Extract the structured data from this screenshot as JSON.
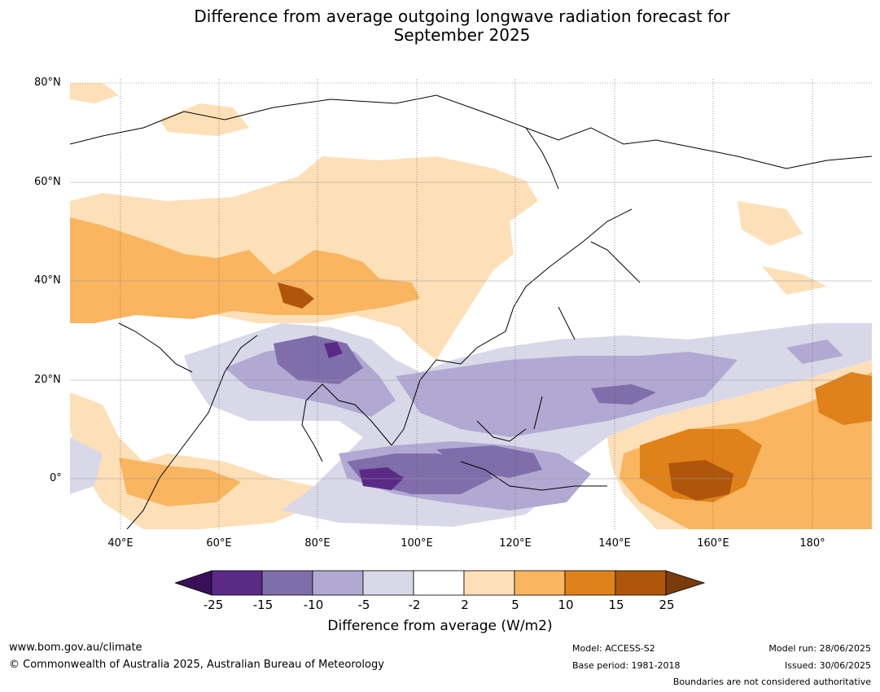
{
  "title_line1": "Difference from average outgoing longwave radiation forecast for",
  "title_line2": "September 2025",
  "lat_labels": [
    "80°N",
    "60°N",
    "40°N",
    "20°N",
    "0°"
  ],
  "lon_labels": [
    "40°E",
    "60°E",
    "80°E",
    "100°E",
    "120°E",
    "140°E",
    "160°E",
    "180°"
  ],
  "colorbar": {
    "ticks": [
      "-25",
      "-15",
      "-10",
      "-5",
      "-2",
      "2",
      "5",
      "10",
      "15",
      "25"
    ],
    "colors": [
      "#3a0f5a",
      "#5b2a87",
      "#7f6eaa",
      "#b1a9d1",
      "#d8d8e9",
      "#ffffff",
      "#fde0b8",
      "#f9b560",
      "#e0811a",
      "#b0560c",
      "#7b3c0b"
    ],
    "label": "Difference from average (W/m2)"
  },
  "footer": {
    "website": "www.bom.gov.au/climate",
    "copyright": "© Commonwealth of Australia 2025, Australian Bureau of Meteorology",
    "model": "Model: ACCESS-S2",
    "base_period": "Base period: 1981-2018",
    "model_run": "Model run: 28/06/2025",
    "issued": "Issued: 30/06/2025",
    "boundaries": "Boundaries are not considered authoritative"
  }
}
